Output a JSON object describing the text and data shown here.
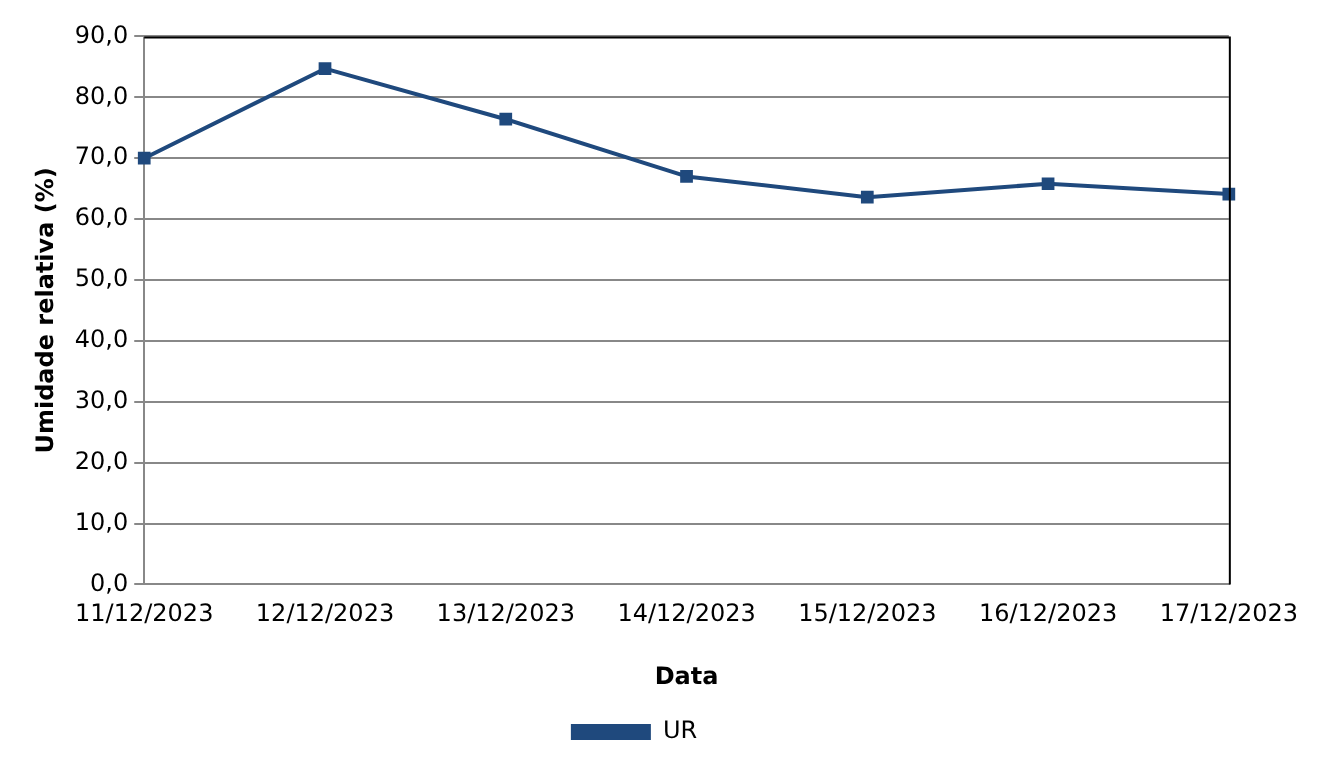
{
  "chart_data": {
    "type": "line",
    "xlabel": "Data",
    "ylabel": "Umidade relativa (%)",
    "categories": [
      "11/12/2023",
      "12/12/2023",
      "13/12/2023",
      "14/12/2023",
      "15/12/2023",
      "16/12/2023",
      "17/12/2023"
    ],
    "series": [
      {
        "name": "UR",
        "color": "#1f497d",
        "values": [
          70.0,
          84.7,
          76.4,
          67.0,
          63.6,
          65.8,
          64.1
        ]
      }
    ],
    "ylim": [
      0,
      90
    ],
    "yticks": [
      {
        "value": 0,
        "label": "0,0"
      },
      {
        "value": 10,
        "label": "10,0"
      },
      {
        "value": 20,
        "label": "20,0"
      },
      {
        "value": 30,
        "label": "30,0"
      },
      {
        "value": 40,
        "label": "40,0"
      },
      {
        "value": 50,
        "label": "50,0"
      },
      {
        "value": 60,
        "label": "60,0"
      },
      {
        "value": 70,
        "label": "70,0"
      },
      {
        "value": 80,
        "label": "80,0"
      },
      {
        "value": 90,
        "label": "90,0"
      }
    ],
    "grid": "y",
    "legend": "bottom",
    "marker": "square",
    "line_style": "solid"
  }
}
